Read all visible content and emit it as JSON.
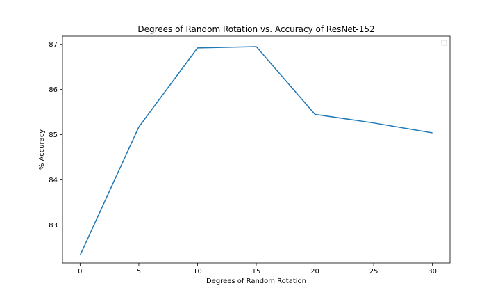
{
  "chart_data": {
    "type": "line",
    "title": "Degrees of Random Rotation vs. Accuracy of ResNet-152",
    "xlabel": "Degrees of Random Rotation",
    "ylabel": "% Accuracy",
    "x": [
      0,
      5,
      10,
      15,
      20,
      25,
      30
    ],
    "series": [
      {
        "values": [
          82.33,
          85.17,
          86.92,
          86.95,
          85.45,
          85.26,
          85.04
        ],
        "color": "#1f77b4"
      }
    ],
    "xticks": [
      0,
      5,
      10,
      15,
      20,
      25,
      30
    ],
    "yticks": [
      83,
      84,
      85,
      86,
      87
    ],
    "xlim": [
      -1.5,
      31.5
    ],
    "ylim": [
      82.16,
      87.18
    ],
    "grid": false,
    "legend": "top-right (empty)"
  }
}
